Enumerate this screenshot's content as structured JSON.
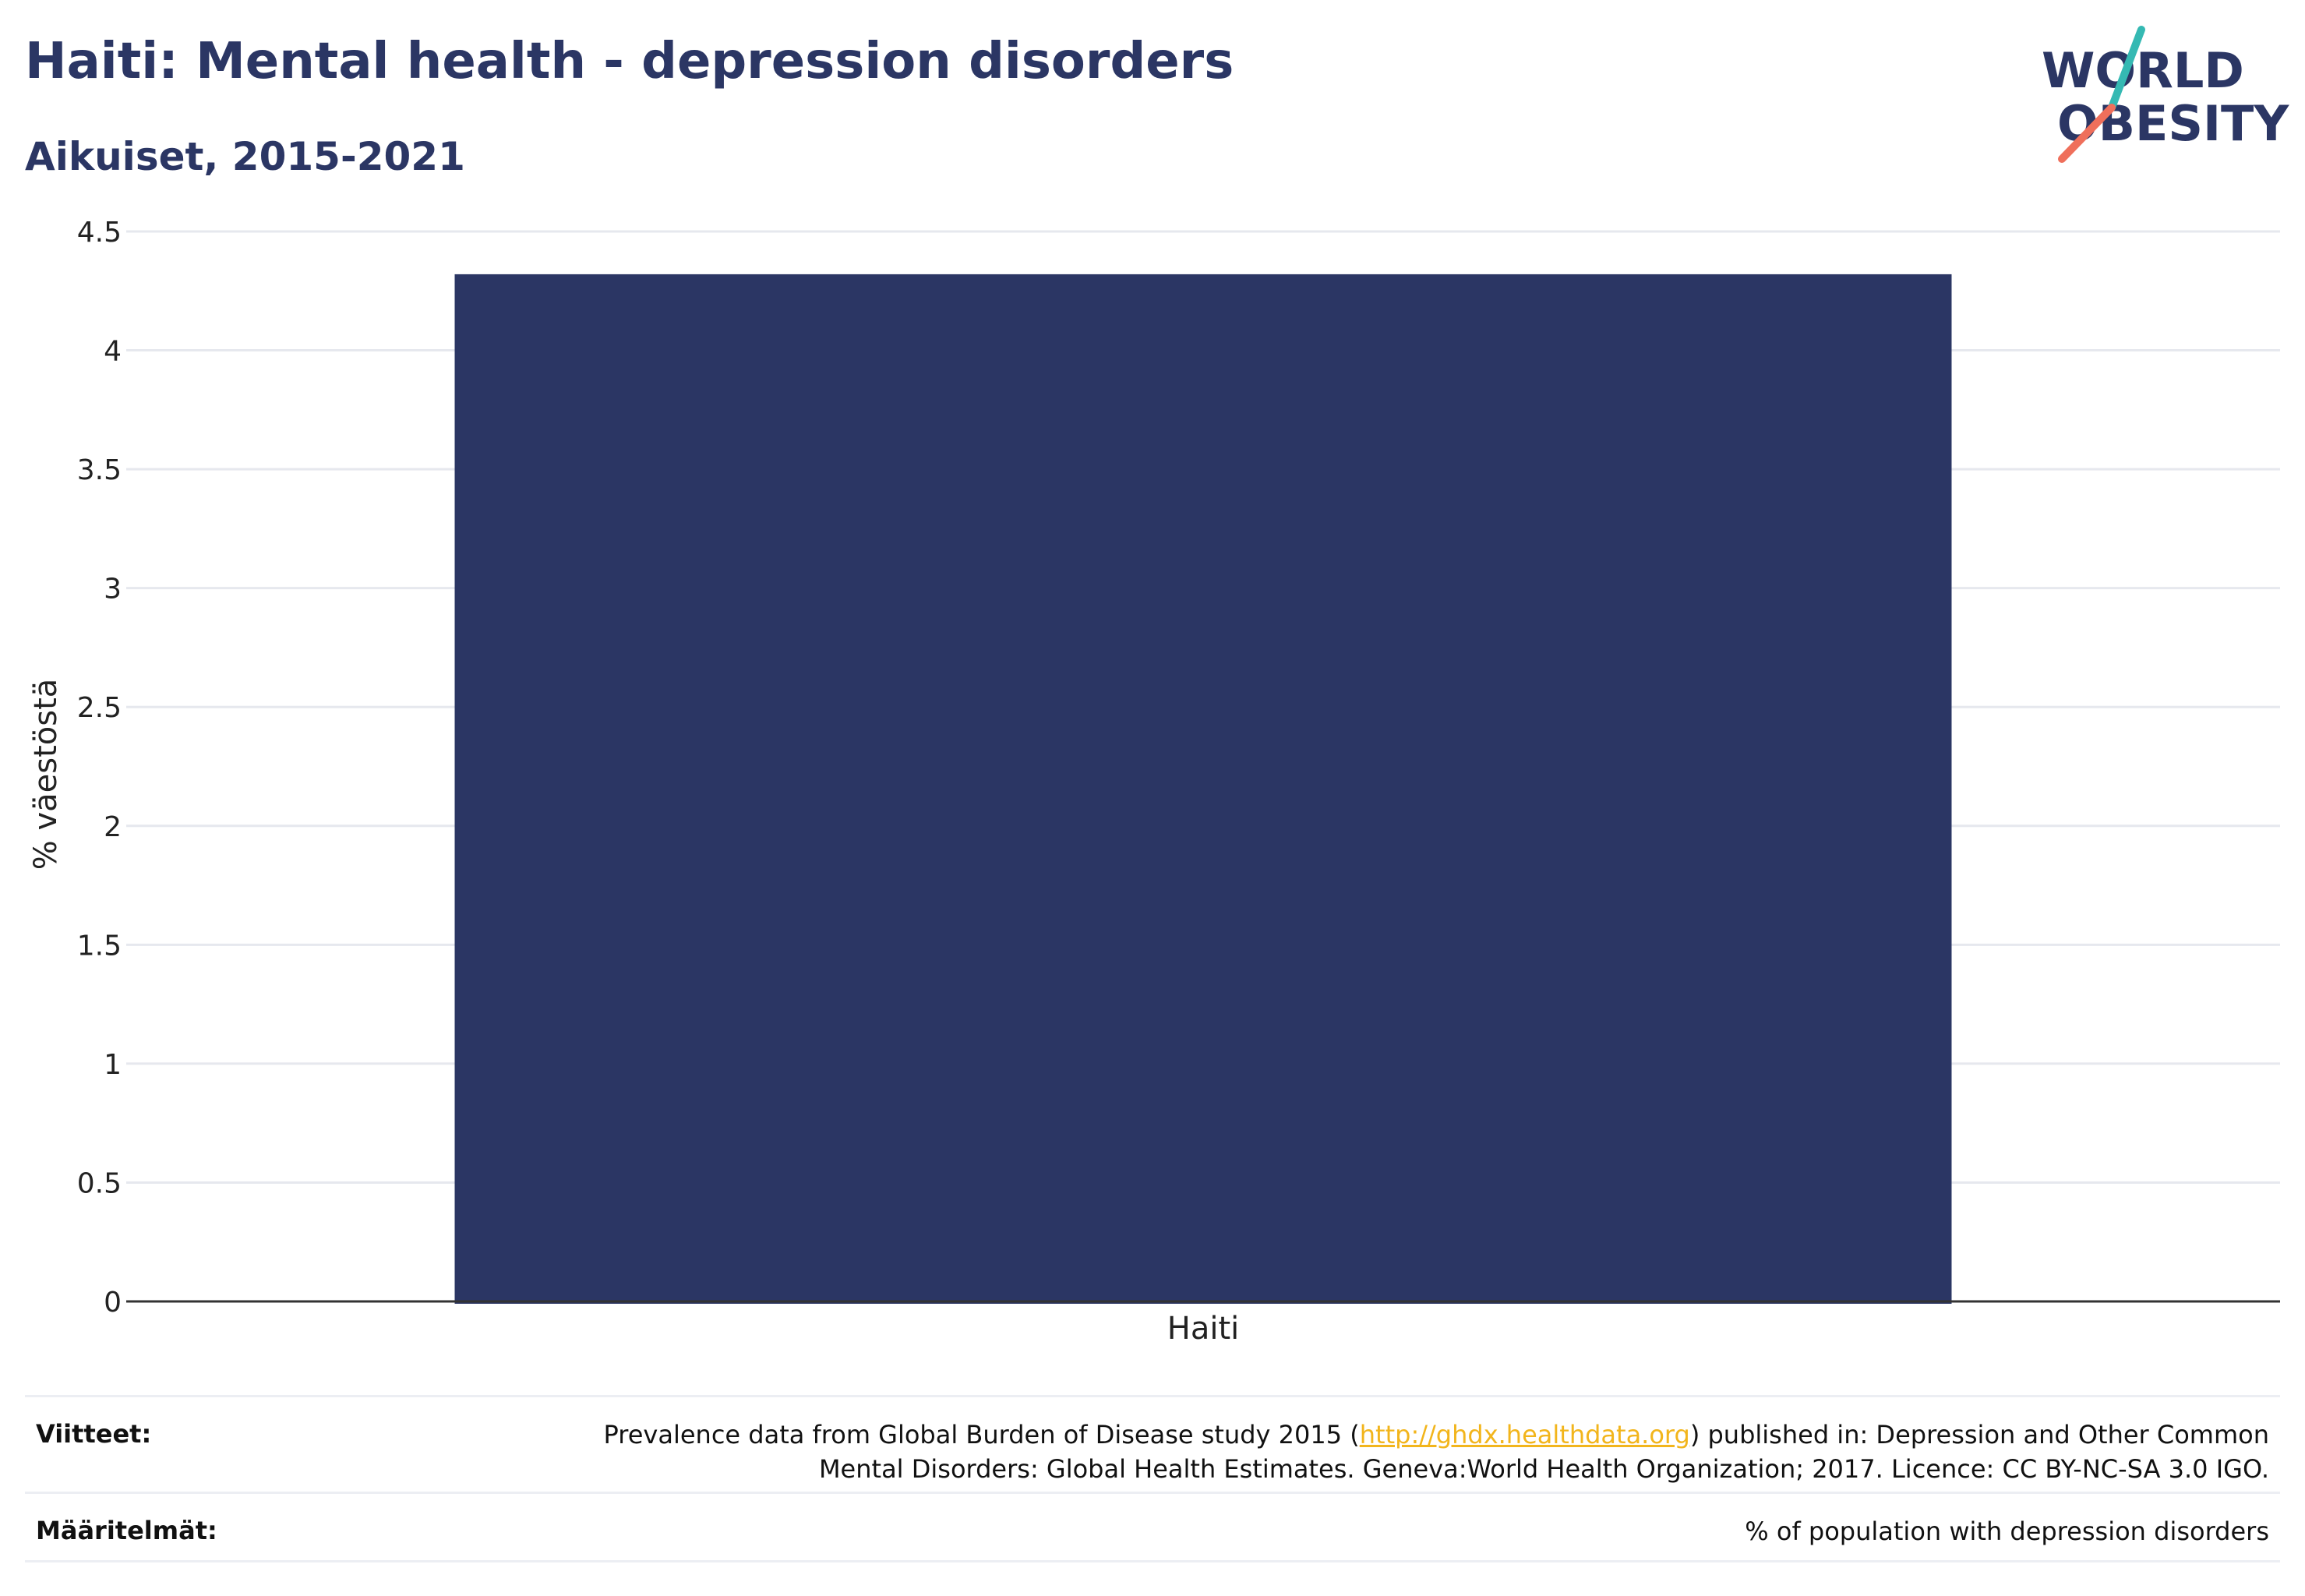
{
  "header": {
    "title": "Haiti: Mental health - depression disorders",
    "subtitle": "Aikuiset, 2015-2021"
  },
  "logo": {
    "line1": "WORLD",
    "line2": "OBESITY"
  },
  "chart_data": {
    "type": "bar",
    "categories": [
      "Haiti"
    ],
    "values": [
      4.32
    ],
    "ylabel": "% väestöstä",
    "xlabel": "",
    "ylim": [
      0,
      4.5
    ],
    "yticks": [
      "0",
      "0.5",
      "1",
      "1.5",
      "2",
      "2.5",
      "3",
      "3.5",
      "4",
      "4.5"
    ],
    "bar_color": "#2b3664",
    "grid": true
  },
  "footer": {
    "sources_label": "Viitteet:",
    "sources_pre": "Prevalence data from Global Burden of Disease study 2015 (",
    "sources_link": "http://ghdx.healthdata.org",
    "sources_post_1": ") published in: Depression and Other Common",
    "sources_line2": "Mental Disorders: Global Health Estimates. Geneva:World Health Organization; 2017. Licence: CC BY-NC-SA 3.0 IGO.",
    "definitions_label": "Määritelmät:",
    "definitions_text": "% of population with depression disorders"
  },
  "colors": {
    "brand": "#2b3664",
    "accent_teal": "#35b9b3",
    "accent_coral": "#ef6f5b",
    "link": "#f2b51c"
  }
}
